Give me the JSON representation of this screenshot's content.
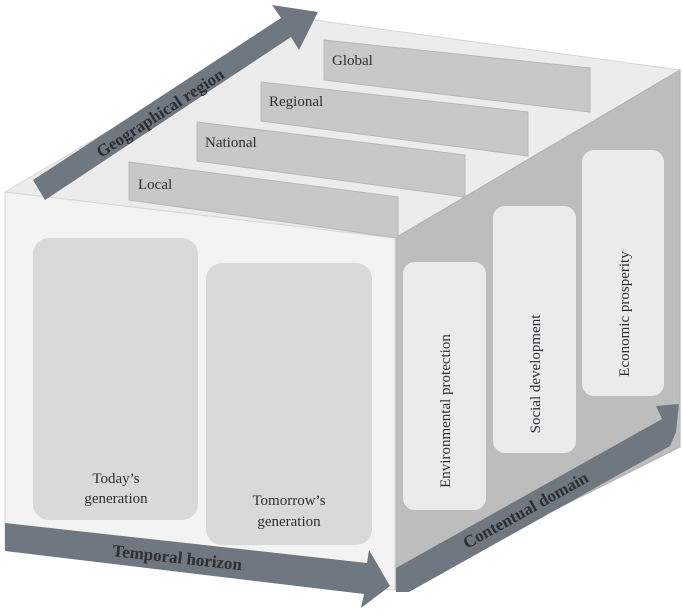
{
  "axes": {
    "geographical": "Geographical region",
    "temporal": "Temporal horizon",
    "contentual": "Contentual domain"
  },
  "regions": [
    "Global",
    "Regional",
    "National",
    "Local"
  ],
  "generations": [
    {
      "line1": "Today’s",
      "line2": "generation"
    },
    {
      "line1": "Tomorrow’s",
      "line2": "generation"
    }
  ],
  "domains": [
    "Environmental protection",
    "Social development",
    "Economic prosperity"
  ],
  "colors": {
    "front_face": "#f3f3f3",
    "top_face": "#ececec",
    "side_face": "#bdbdbd",
    "panel": "#d9d9d9",
    "top_bar": "#c8c8c8",
    "side_panel": "#ebebeb",
    "arrow": "#6f7780",
    "edge": "#d0d0d0",
    "text": "#2b2f33"
  }
}
